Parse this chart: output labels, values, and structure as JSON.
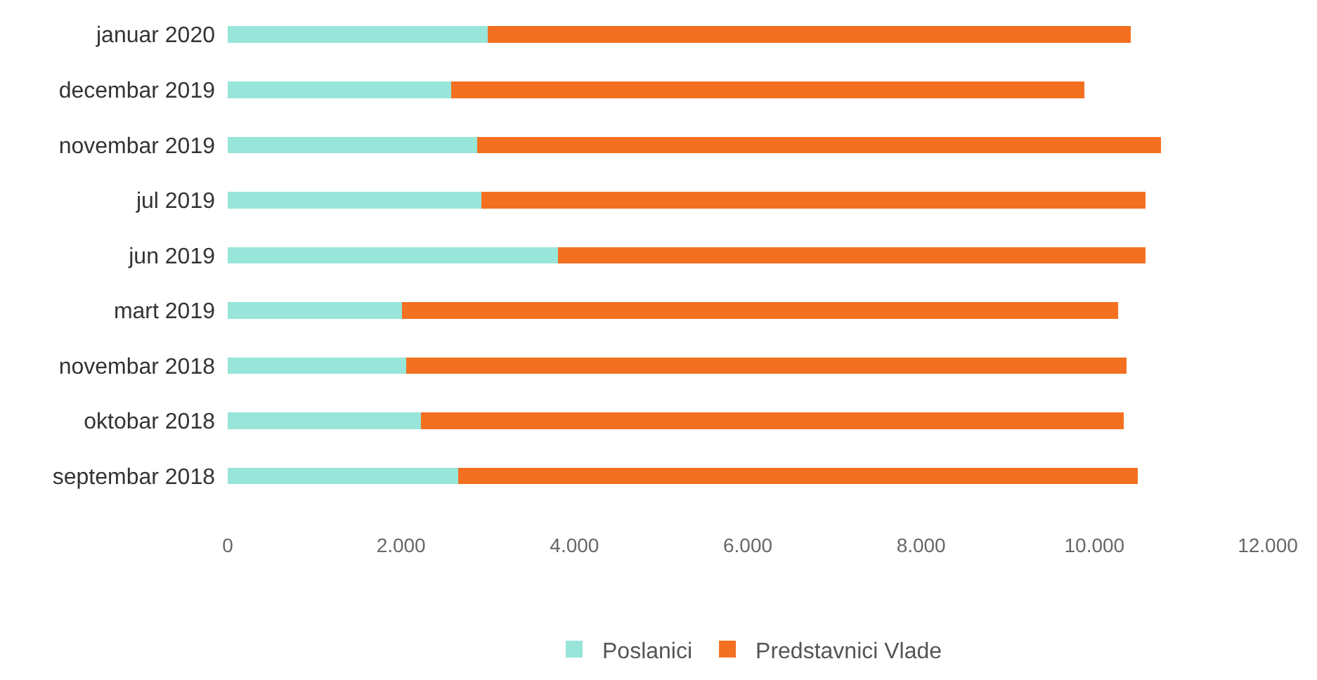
{
  "chart_data": {
    "type": "bar",
    "orientation": "horizontal",
    "stacked": true,
    "categories": [
      "januar 2020",
      "decembar 2019",
      "novembar 2019",
      "jul 2019",
      "jun 2019",
      "mart 2019",
      "novembar 2018",
      "oktobar 2018",
      "septembar 2018"
    ],
    "series": [
      {
        "name": "Poslanici",
        "color": "#98e5d9",
        "values": [
          3000,
          2580,
          2880,
          2930,
          3810,
          2010,
          2060,
          2230,
          2660
        ]
      },
      {
        "name": "Predstavnici Vlade",
        "color": "#f37021",
        "values": [
          7420,
          7300,
          7890,
          7660,
          6780,
          8260,
          8310,
          8110,
          7840
        ]
      }
    ],
    "xlim": [
      0,
      12000
    ],
    "xticks": [
      0,
      {
        "value": 2000,
        "label": "2.000"
      },
      {
        "value": 4000,
        "label": "4.000"
      },
      {
        "value": 6000,
        "label": "6.000"
      },
      {
        "value": 8000,
        "label": "8.000"
      },
      {
        "value": 10000,
        "label": "10.000"
      },
      {
        "value": 12000,
        "label": "12.000"
      }
    ],
    "legend": "bottom"
  }
}
